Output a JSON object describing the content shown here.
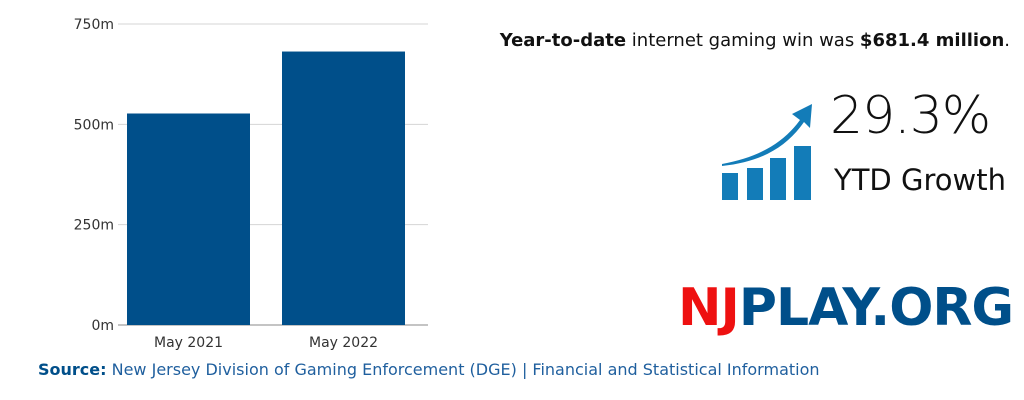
{
  "chart_data": {
    "type": "bar",
    "categories": [
      "May 2021",
      "May 2022"
    ],
    "values": [
      527.0,
      681.4
    ],
    "unit": "m",
    "ylim": [
      0,
      750
    ],
    "yticks": [
      "0m",
      "250m",
      "500m",
      "750m"
    ],
    "ytick_values": [
      0,
      250,
      500,
      750
    ],
    "grid": true,
    "bar_color": "#004f8a"
  },
  "headline": {
    "bold1": "Year-to-date",
    "middle": " internet gaming win was ",
    "bold2": "$681.4 million",
    "end": "."
  },
  "stat": {
    "value": "29.3%",
    "label": "YTD Growth",
    "icon": "growth-chart-arrow-icon",
    "icon_color": "#137cb8"
  },
  "logo": {
    "part1": "NJ",
    "part2": "PLAY.ORG",
    "color1": "#ee1111",
    "color2": "#004f8a"
  },
  "source": {
    "label": "Source:",
    "text": " New Jersey Division of Gaming Enforcement (DGE) | Financial and Statistical Information"
  }
}
